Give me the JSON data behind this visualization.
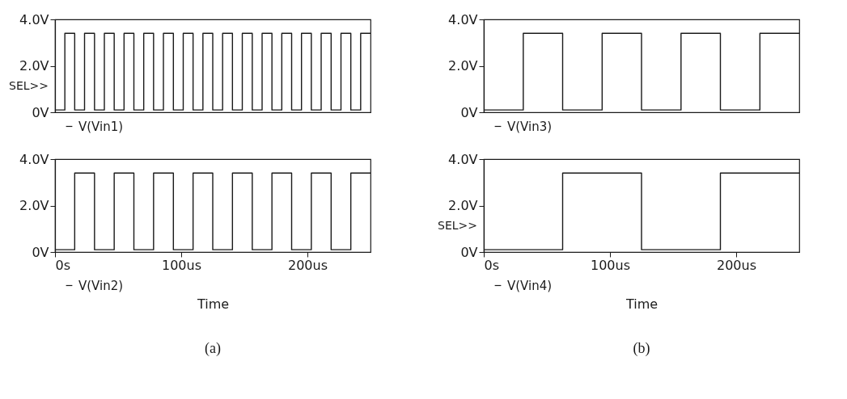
{
  "chart_data": [
    {
      "type": "step",
      "x": [
        0,
        7.8,
        15.6,
        23.4,
        31.3,
        39.1,
        46.9,
        54.7,
        62.5,
        70.3,
        78.1,
        85.9,
        93.8,
        101.6,
        109.4,
        117.2,
        125,
        132.8,
        140.6,
        148.4,
        156.3,
        164.1,
        171.9,
        179.7,
        187.5,
        195.3,
        203.1,
        210.9,
        218.8,
        226.6,
        234.4,
        242.2,
        250
      ],
      "series": [
        {
          "name": "V(Vin1)",
          "color": "#1a1a1a",
          "values": [
            0.1,
            3.4,
            0.1,
            3.4,
            0.1,
            3.4,
            0.1,
            3.4,
            0.1,
            3.4,
            0.1,
            3.4,
            0.1,
            3.4,
            0.1,
            3.4,
            0.1,
            3.4,
            0.1,
            3.4,
            0.1,
            3.4,
            0.1,
            3.4,
            0.1,
            3.4,
            0.1,
            3.4,
            0.1,
            3.4,
            0.1,
            3.4,
            3.4
          ]
        }
      ],
      "xlim": [
        0,
        250
      ],
      "xticks": [
        {
          "value": 0,
          "label": null
        },
        {
          "value": 100,
          "label": null
        },
        {
          "value": 200,
          "label": null
        }
      ],
      "ylim": [
        0,
        4
      ],
      "yticks": [
        {
          "value": 0,
          "label": "0V"
        },
        {
          "value": 2,
          "label": "2.0V"
        },
        {
          "value": 4,
          "label": "4.0V"
        }
      ],
      "tick_labels": "y",
      "legend": "bottom left",
      "annotations": [
        "SEL>>"
      ]
    },
    {
      "type": "step",
      "x": [
        0,
        15.6,
        31.3,
        46.9,
        62.5,
        78.1,
        93.8,
        109.4,
        125,
        140.6,
        156.3,
        171.9,
        187.5,
        203.1,
        218.8,
        234.4,
        250
      ],
      "series": [
        {
          "name": "V(Vin2)",
          "color": "#1a1a1a",
          "values": [
            0.1,
            3.4,
            0.1,
            3.4,
            0.1,
            3.4,
            0.1,
            3.4,
            0.1,
            3.4,
            0.1,
            3.4,
            0.1,
            3.4,
            0.1,
            3.4,
            3.4
          ]
        }
      ],
      "xlim": [
        0,
        250
      ],
      "xticks": [
        {
          "value": 0,
          "label": "0s"
        },
        {
          "value": 100,
          "label": "100us"
        },
        {
          "value": 200,
          "label": "200us"
        }
      ],
      "ylim": [
        0,
        4
      ],
      "yticks": [
        {
          "value": 0,
          "label": "0V"
        },
        {
          "value": 2,
          "label": "2.0V"
        },
        {
          "value": 4,
          "label": "4.0V"
        }
      ],
      "xlabel": "Time",
      "legend": "bottom left",
      "annotations": [
        "(a)"
      ]
    },
    {
      "type": "step",
      "x": [
        0,
        31.3,
        62.5,
        93.8,
        125,
        156.3,
        187.5,
        218.8,
        250
      ],
      "series": [
        {
          "name": "V(Vin3)",
          "color": "#1a1a1a",
          "values": [
            0.1,
            3.4,
            0.1,
            3.4,
            0.1,
            3.4,
            0.1,
            3.4,
            3.4
          ]
        }
      ],
      "xlim": [
        0,
        250
      ],
      "xticks": [
        {
          "value": 0,
          "label": null
        },
        {
          "value": 100,
          "label": null
        },
        {
          "value": 200,
          "label": null
        }
      ],
      "ylim": [
        0,
        4
      ],
      "yticks": [
        {
          "value": 0,
          "label": "0V"
        },
        {
          "value": 2,
          "label": "2.0V"
        },
        {
          "value": 4,
          "label": "4.0V"
        }
      ],
      "tick_labels": "y",
      "legend": "bottom left"
    },
    {
      "type": "step",
      "x": [
        0,
        62.5,
        125,
        187.5,
        250
      ],
      "series": [
        {
          "name": "V(Vin4)",
          "color": "#1a1a1a",
          "values": [
            0.1,
            3.4,
            0.1,
            3.4,
            3.4
          ]
        }
      ],
      "xlim": [
        0,
        250
      ],
      "xticks": [
        {
          "value": 0,
          "label": "0s"
        },
        {
          "value": 100,
          "label": "100us"
        },
        {
          "value": 200,
          "label": "200us"
        }
      ],
      "ylim": [
        0,
        4
      ],
      "yticks": [
        {
          "value": 0,
          "label": "0V"
        },
        {
          "value": 2,
          "label": "2.0V"
        },
        {
          "value": 4,
          "label": "4.0V"
        }
      ],
      "xlabel": "Time",
      "legend": "bottom left",
      "annotations": [
        "SEL>>",
        "(b)"
      ]
    }
  ]
}
